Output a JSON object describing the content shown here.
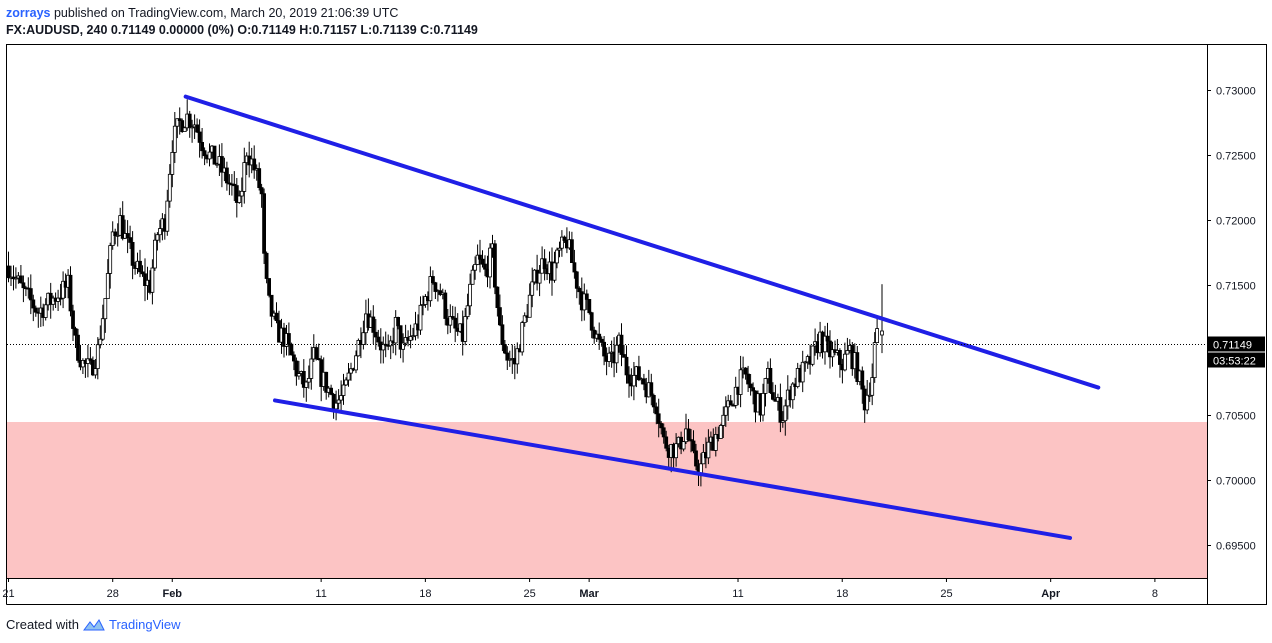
{
  "header": {
    "author": "zorrays",
    "published": "published on TradingView.com, March 20, 2019 21:06:39 UTC",
    "symbol_line": "FX:AUDUSD, 240",
    "quote_line": "0.71149 0.00000 (0%) O:0.71149 H:0.71157 L:0.71139 C:0.71149"
  },
  "footer": {
    "created_with": "Created with",
    "brand": "TradingView"
  },
  "price_labels": {
    "last_price": "0.71149",
    "countdown": "03:53:22"
  },
  "colors": {
    "trendline": "#1f1fe6",
    "support_zone": "#fcc4c4",
    "candle": "#000000",
    "label_bg": "#000000"
  },
  "chart_data": {
    "type": "candlestick",
    "symbol": "FX:AUDUSD",
    "interval": "240",
    "y_ticks": [
      "0.73000",
      "0.72500",
      "0.72000",
      "0.71500",
      "0.71149",
      "0.70500",
      "0.70000",
      "0.69500"
    ],
    "y_tick_values": [
      0.73,
      0.725,
      0.72,
      0.715,
      0.7105,
      0.705,
      0.7,
      0.695
    ],
    "ylim": [
      0.6925,
      0.7335
    ],
    "x_ticks": [
      {
        "label": "21",
        "day": 0
      },
      {
        "label": "28",
        "day": 7
      },
      {
        "label": "Feb",
        "day": 11,
        "bold": true
      },
      {
        "label": "11",
        "day": 21
      },
      {
        "label": "18",
        "day": 28
      },
      {
        "label": "25",
        "day": 35
      },
      {
        "label": "Mar",
        "day": 39,
        "bold": true
      },
      {
        "label": "11",
        "day": 49
      },
      {
        "label": "18",
        "day": 56
      },
      {
        "label": "25",
        "day": 63
      },
      {
        "label": "Apr",
        "day": 70,
        "bold": true
      },
      {
        "label": "8",
        "day": 77
      }
    ],
    "xlim_days": [
      -0.1,
      80.5
    ],
    "last_price": 0.71149,
    "support_zone": {
      "low": 0.6925,
      "high": 0.7045
    },
    "trendlines": [
      {
        "name": "upper",
        "x1": 11.9,
        "y1": 0.72953,
        "x2": 73.2,
        "y2": 0.70715
      },
      {
        "name": "lower",
        "x1": 17.9,
        "y1": 0.70616,
        "x2": 71.3,
        "y2": 0.69558
      }
    ],
    "close_path": [
      [
        0,
        0.7165
      ],
      [
        1,
        0.7145
      ],
      [
        2,
        0.713
      ],
      [
        3,
        0.714
      ],
      [
        4,
        0.715
      ],
      [
        4.5,
        0.7105
      ],
      [
        5,
        0.709
      ],
      [
        5.5,
        0.7085
      ],
      [
        6,
        0.71
      ],
      [
        6.5,
        0.714
      ],
      [
        7,
        0.719
      ],
      [
        7.5,
        0.72
      ],
      [
        8,
        0.718
      ],
      [
        8.5,
        0.7165
      ],
      [
        9,
        0.7155
      ],
      [
        9.5,
        0.715
      ],
      [
        10,
        0.719
      ],
      [
        10.5,
        0.72
      ],
      [
        11,
        0.726
      ],
      [
        11.5,
        0.7275
      ],
      [
        12,
        0.728
      ],
      [
        12.5,
        0.7275
      ],
      [
        13,
        0.726
      ],
      [
        13.5,
        0.725
      ],
      [
        14,
        0.7245
      ],
      [
        14.5,
        0.7235
      ],
      [
        15,
        0.7225
      ],
      [
        15.5,
        0.721
      ],
      [
        16,
        0.7255
      ],
      [
        16.5,
        0.724
      ],
      [
        17,
        0.722
      ],
      [
        17.2,
        0.716
      ],
      [
        17.5,
        0.7135
      ],
      [
        18,
        0.7115
      ],
      [
        18.5,
        0.711
      ],
      [
        19,
        0.7095
      ],
      [
        19.5,
        0.708
      ],
      [
        20,
        0.707
      ],
      [
        20.5,
        0.7095
      ],
      [
        21,
        0.708
      ],
      [
        21.5,
        0.707
      ],
      [
        22,
        0.706
      ],
      [
        22.5,
        0.7065
      ],
      [
        23,
        0.7085
      ],
      [
        23.5,
        0.7105
      ],
      [
        24,
        0.713
      ],
      [
        24.5,
        0.712
      ],
      [
        25,
        0.7105
      ],
      [
        25.5,
        0.7095
      ],
      [
        26,
        0.712
      ],
      [
        26.5,
        0.71
      ],
      [
        27,
        0.711
      ],
      [
        27.5,
        0.712
      ],
      [
        28,
        0.714
      ],
      [
        28.5,
        0.7155
      ],
      [
        29,
        0.7145
      ],
      [
        29.5,
        0.7125
      ],
      [
        30,
        0.7115
      ],
      [
        30.5,
        0.711
      ],
      [
        31,
        0.7145
      ],
      [
        31.5,
        0.717
      ],
      [
        32,
        0.716
      ],
      [
        32.5,
        0.7175
      ],
      [
        33,
        0.7115
      ],
      [
        33.5,
        0.7095
      ],
      [
        34,
        0.709
      ],
      [
        34.5,
        0.7115
      ],
      [
        35,
        0.714
      ],
      [
        35.5,
        0.716
      ],
      [
        36,
        0.717
      ],
      [
        36.5,
        0.716
      ],
      [
        37,
        0.7175
      ],
      [
        37.5,
        0.7185
      ],
      [
        38,
        0.716
      ],
      [
        38.5,
        0.714
      ],
      [
        39,
        0.713
      ],
      [
        39.5,
        0.711
      ],
      [
        40,
        0.7095
      ],
      [
        40.5,
        0.709
      ],
      [
        41,
        0.7105
      ],
      [
        41.5,
        0.7085
      ],
      [
        42,
        0.708
      ],
      [
        42.5,
        0.708
      ],
      [
        43,
        0.707
      ],
      [
        43.5,
        0.706
      ],
      [
        44,
        0.703
      ],
      [
        44.5,
        0.7025
      ],
      [
        45,
        0.7025
      ],
      [
        45.5,
        0.704
      ],
      [
        46,
        0.7015
      ],
      [
        46.5,
        0.701
      ],
      [
        47,
        0.7025
      ],
      [
        47.5,
        0.7035
      ],
      [
        48,
        0.7045
      ],
      [
        48.5,
        0.706
      ],
      [
        49,
        0.7075
      ],
      [
        49.5,
        0.708
      ],
      [
        50,
        0.7065
      ],
      [
        50.5,
        0.7055
      ],
      [
        51,
        0.708
      ],
      [
        51.5,
        0.706
      ],
      [
        52,
        0.705
      ],
      [
        52.5,
        0.707
      ],
      [
        53,
        0.708
      ],
      [
        53.5,
        0.7085
      ],
      [
        54,
        0.7095
      ],
      [
        54.5,
        0.711
      ],
      [
        55,
        0.71
      ],
      [
        55.5,
        0.7095
      ],
      [
        56,
        0.709
      ],
      [
        56.5,
        0.71
      ],
      [
        57,
        0.7085
      ],
      [
        57.5,
        0.706
      ],
      [
        58,
        0.708
      ],
      [
        58.2,
        0.7105
      ],
      [
        58.5,
        0.7115
      ]
    ]
  }
}
